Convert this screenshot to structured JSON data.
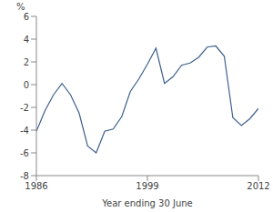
{
  "chart_data": {
    "type": "line",
    "y_label": "%",
    "x_label": "Year ending 30 June",
    "x": [
      1986,
      1987,
      1988,
      1989,
      1990,
      1991,
      1992,
      1993,
      1994,
      1995,
      1996,
      1997,
      1998,
      1999,
      2000,
      2001,
      2002,
      2003,
      2004,
      2005,
      2006,
      2007,
      2008,
      2009,
      2010,
      2011,
      2012
    ],
    "values": [
      -4.1,
      -2.3,
      -0.9,
      0.1,
      -0.9,
      -2.5,
      -5.4,
      -6.0,
      -4.1,
      -3.9,
      -2.8,
      -0.6,
      0.5,
      1.8,
      3.2,
      0.1,
      0.7,
      1.7,
      1.9,
      2.4,
      3.3,
      3.4,
      2.5,
      -2.9,
      -3.6,
      -3.0,
      -2.1
    ],
    "color": "#3d5f8f",
    "xlim": [
      1986,
      2012
    ],
    "xticks": [
      1986,
      1999,
      2012
    ],
    "ylim": [
      -8,
      6
    ],
    "yticks": [
      -8,
      -6,
      -4,
      -2,
      0,
      2,
      4,
      6
    ],
    "grid": false
  }
}
